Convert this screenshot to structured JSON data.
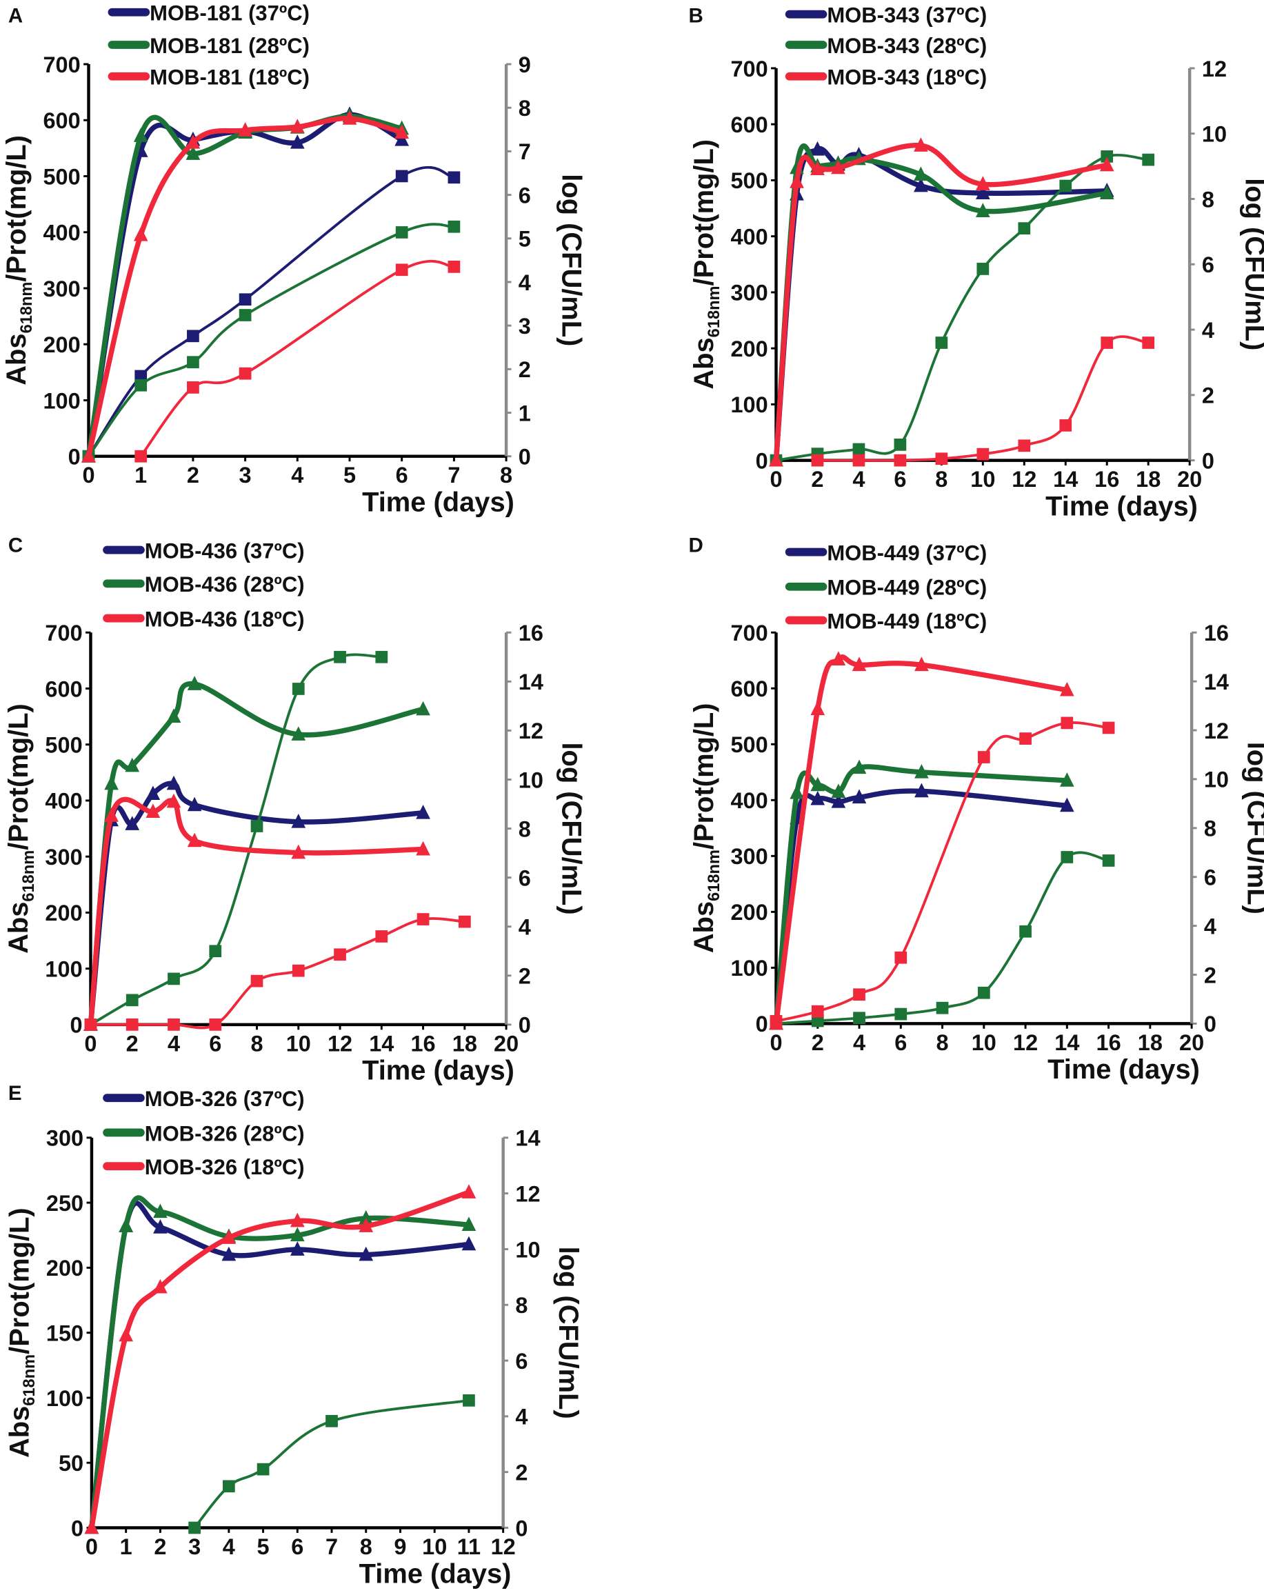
{
  "chart_data": [
    {
      "panel": "A",
      "type": "line",
      "xlabel": "Time (days)",
      "ylabel": {
        "main": "Abs",
        "sub": "618nm",
        "rest": "/Prot(mg/L)"
      },
      "y2label": "log (CFU/mL)",
      "xlim": [
        0,
        8
      ],
      "ylim": [
        0,
        700
      ],
      "y2lim": [
        0,
        9
      ],
      "xticks": [
        "0",
        "1",
        "2",
        "3",
        "4",
        "5",
        "6",
        "7",
        "8"
      ],
      "yticks": [
        "0",
        "100",
        "200",
        "300",
        "400",
        "500",
        "600",
        "700"
      ],
      "y2ticks": [
        "0",
        "1",
        "2",
        "3",
        "4",
        "5",
        "6",
        "7",
        "8",
        "9"
      ],
      "series": [
        {
          "name": "MOB-181 (37ºC)",
          "color": "#1c1c72",
          "abs": {
            "x": [
              0,
              1,
              2,
              3,
              4,
              5,
              6
            ],
            "y": [
              0,
              545,
              565,
              580,
              560,
              610,
              565
            ]
          },
          "cfu": {
            "x": [
              0,
              1,
              2,
              3,
              6,
              7
            ],
            "y": [
              0,
              1.84,
              2.76,
              3.6,
              6.43,
              6.4
            ]
          }
        },
        {
          "name": "MOB-181 (28ºC)",
          "color": "#1b7436",
          "abs": {
            "x": [
              0,
              1,
              2,
              3,
              4,
              5,
              6
            ],
            "y": [
              0,
              572,
              540,
              578,
              587,
              607,
              585
            ]
          },
          "cfu": {
            "x": [
              0,
              1,
              2,
              3,
              6,
              7
            ],
            "y": [
              0,
              1.63,
              2.16,
              3.24,
              5.14,
              5.27
            ]
          }
        },
        {
          "name": "MOB-181 (18ºC)",
          "color": "#f0283c",
          "abs": {
            "x": [
              0,
              1,
              2,
              3,
              4,
              5,
              6
            ],
            "y": [
              0,
              395,
              560,
              582,
              588,
              603,
              578
            ]
          },
          "cfu": {
            "x": [
              1,
              2,
              3,
              6,
              7
            ],
            "y": [
              0,
              1.58,
              1.9,
              4.28,
              4.35
            ]
          }
        }
      ]
    },
    {
      "panel": "B",
      "type": "line",
      "xlabel": "Time (days)",
      "ylabel": {
        "main": "Abs",
        "sub": "618nm",
        "rest": "/Prot(mg/L)"
      },
      "y2label": "log (CFU/mL)",
      "xlim": [
        0,
        20
      ],
      "ylim": [
        0,
        700
      ],
      "y2lim": [
        0,
        12
      ],
      "xticks": [
        "0",
        "2",
        "4",
        "6",
        "8",
        "10",
        "12",
        "14",
        "16",
        "18",
        "20"
      ],
      "yticks": [
        "0",
        "100",
        "200",
        "300",
        "400",
        "500",
        "600",
        "700"
      ],
      "y2ticks": [
        "0",
        "2",
        "4",
        "6",
        "8",
        "10",
        "12"
      ],
      "series": [
        {
          "name": "MOB-343 (37ºC)",
          "color": "#1c1c72",
          "abs": {
            "x": [
              0,
              1,
              2,
              3,
              4,
              7,
              10,
              16
            ],
            "y": [
              0,
              475,
              555,
              528,
              545,
              490,
              477,
              481
            ]
          },
          "cfu": {
            "x": [],
            "y": []
          }
        },
        {
          "name": "MOB-343 (28ºC)",
          "color": "#1b7436",
          "abs": {
            "x": [
              0,
              1,
              2,
              3,
              4,
              7,
              10,
              16
            ],
            "y": [
              0,
              522,
              525,
              530,
              538,
              510,
              445,
              477
            ]
          },
          "cfu": {
            "x": [
              0,
              2,
              4,
              6,
              8,
              10,
              12,
              14,
              16,
              18
            ],
            "y": [
              0,
              0.2,
              0.34,
              0.48,
              3.6,
              5.86,
              7.1,
              8.4,
              9.3,
              9.2
            ]
          }
        },
        {
          "name": "MOB-343 (18ºC)",
          "color": "#f0283c",
          "abs": {
            "x": [
              0,
              1,
              2,
              3,
              7,
              10,
              16
            ],
            "y": [
              0,
              497,
              520,
              522,
              562,
              493,
              527
            ]
          },
          "cfu": {
            "x": [
              2,
              4,
              6,
              8,
              10,
              12,
              14,
              16,
              18
            ],
            "y": [
              0,
              0,
              0,
              0.05,
              0.19,
              0.45,
              1.07,
              3.6,
              3.6
            ]
          }
        }
      ]
    },
    {
      "panel": "C",
      "type": "line",
      "xlabel": "Time (days)",
      "ylabel": {
        "main": "Abs",
        "sub": "618nm",
        "rest": "/Prot(mg/L)"
      },
      "y2label": "log (CFU/mL)",
      "xlim": [
        0,
        20
      ],
      "ylim": [
        0,
        700
      ],
      "y2lim": [
        0,
        16
      ],
      "xticks": [
        "0",
        "2",
        "4",
        "6",
        "8",
        "10",
        "12",
        "14",
        "16",
        "18",
        "20"
      ],
      "yticks": [
        "0",
        "100",
        "200",
        "300",
        "400",
        "500",
        "600",
        "700"
      ],
      "y2ticks": [
        "0",
        "2",
        "4",
        "6",
        "8",
        "10",
        "12",
        "14",
        "16"
      ],
      "series": [
        {
          "name": "MOB-436 (37ºC)",
          "color": "#1c1c72",
          "abs": {
            "x": [
              0,
              1,
              2,
              3,
              4,
              5,
              10,
              16
            ],
            "y": [
              0,
              365,
              358,
              412,
              430,
              392,
              362,
              378
            ]
          },
          "cfu": {
            "x": [],
            "y": []
          }
        },
        {
          "name": "MOB-436 (28ºC)",
          "color": "#1b7436",
          "abs": {
            "x": [
              0,
              1,
              2,
              4,
              5,
              10,
              16
            ],
            "y": [
              0,
              430,
              462,
              550,
              608,
              518,
              563
            ]
          },
          "cfu": {
            "x": [
              0,
              2,
              4,
              6,
              8,
              10,
              12,
              14
            ],
            "y": [
              0,
              1.0,
              1.87,
              3.0,
              8.1,
              13.7,
              15.0,
              15.0
            ]
          }
        },
        {
          "name": "MOB-436 (18ºC)",
          "color": "#f0283c",
          "abs": {
            "x": [
              0,
              1,
              3,
              4,
              5,
              10,
              16
            ],
            "y": [
              0,
              373,
              380,
              398,
              328,
              307,
              313
            ]
          },
          "cfu": {
            "x": [
              0,
              2,
              4,
              6,
              8,
              10,
              12,
              14,
              16,
              18
            ],
            "y": [
              0,
              0,
              0,
              0,
              1.78,
              2.2,
              2.86,
              3.6,
              4.3,
              4.2
            ]
          }
        }
      ]
    },
    {
      "panel": "D",
      "type": "line",
      "xlabel": "Time (days)",
      "ylabel": {
        "main": "Abs",
        "sub": "618nm",
        "rest": "/Prot(mg/L)"
      },
      "y2label": "log (CFU/mL)",
      "xlim": [
        0,
        20
      ],
      "ylim": [
        0,
        700
      ],
      "y2lim": [
        0,
        16
      ],
      "xticks": [
        "0",
        "2",
        "4",
        "6",
        "8",
        "10",
        "12",
        "14",
        "16",
        "18",
        "20"
      ],
      "yticks": [
        "0",
        "100",
        "200",
        "300",
        "400",
        "500",
        "600",
        "700"
      ],
      "y2ticks": [
        "0",
        "2",
        "4",
        "6",
        "8",
        "10",
        "12",
        "14",
        "16"
      ],
      "series": [
        {
          "name": "MOB-449 (37ºC)",
          "color": "#1c1c72",
          "abs": {
            "x": [
              0,
              1,
              2,
              3,
              4,
              7,
              14
            ],
            "y": [
              0,
              368,
              402,
              397,
              405,
              416,
              390
            ]
          },
          "cfu": {
            "x": [],
            "y": []
          }
        },
        {
          "name": "MOB-449 (28ºC)",
          "color": "#1b7436",
          "abs": {
            "x": [
              0,
              1,
              2,
              3,
              4,
              7,
              14
            ],
            "y": [
              0,
              413,
              427,
              415,
              458,
              450,
              435
            ]
          },
          "cfu": {
            "x": [
              0,
              2,
              4,
              6,
              8,
              10,
              12,
              14,
              16
            ],
            "y": [
              0,
              0.11,
              0.23,
              0.39,
              0.64,
              1.26,
              3.77,
              6.81,
              6.67
            ]
          }
        },
        {
          "name": "MOB-449 (18ºC)",
          "color": "#f0283c",
          "abs": {
            "x": [
              0,
              2,
              3,
              4,
              7,
              14
            ],
            "y": [
              0,
              563,
              652,
              642,
              642,
              597
            ]
          },
          "cfu": {
            "x": [
              0,
              2,
              4,
              6,
              10,
              12,
              14,
              16
            ],
            "y": [
              0.1,
              0.5,
              1.19,
              2.7,
              10.9,
              11.66,
              12.3,
              12.1
            ]
          }
        }
      ]
    },
    {
      "panel": "E",
      "type": "line",
      "xlabel": "Time (days)",
      "ylabel": {
        "main": "Abs",
        "sub": "618nm",
        "rest": "/Prot(mg/L)"
      },
      "y2label": "log (CFU/mL)",
      "xlim": [
        0,
        12
      ],
      "ylim": [
        0,
        300
      ],
      "y2lim": [
        0,
        14
      ],
      "xticks": [
        "0",
        "1",
        "2",
        "3",
        "4",
        "5",
        "6",
        "7",
        "8",
        "9",
        "10",
        "11",
        "12"
      ],
      "yticks": [
        "0",
        "50",
        "100",
        "150",
        "200",
        "250",
        "300"
      ],
      "y2ticks": [
        "0",
        "2",
        "4",
        "6",
        "8",
        "10",
        "12",
        "14"
      ],
      "series": [
        {
          "name": "MOB-326 (37ºC)",
          "color": "#1c1c72",
          "abs": {
            "x": [
              0,
              1,
              2,
              4,
              6,
              8,
              11
            ],
            "y": [
              0,
              232,
              231,
              210,
              214,
              210,
              218
            ]
          },
          "cfu": {
            "x": [],
            "y": []
          }
        },
        {
          "name": "MOB-326 (28ºC)",
          "color": "#1b7436",
          "abs": {
            "x": [
              0,
              1,
              2,
              4,
              6,
              8,
              11
            ],
            "y": [
              0,
              232,
              243,
              224,
              225,
              238,
              233
            ]
          },
          "cfu": {
            "x": [
              3,
              4,
              5,
              7,
              11
            ],
            "y": [
              0,
              1.49,
              2.1,
              3.83,
              4.57
            ]
          }
        },
        {
          "name": "MOB-326 (18ºC)",
          "color": "#f0283c",
          "abs": {
            "x": [
              0,
              1,
              2,
              4,
              6,
              8,
              11
            ],
            "y": [
              0,
              148,
              185,
              223,
              236,
              232,
              258
            ]
          },
          "cfu": {
            "x": [],
            "y": []
          }
        }
      ]
    }
  ]
}
